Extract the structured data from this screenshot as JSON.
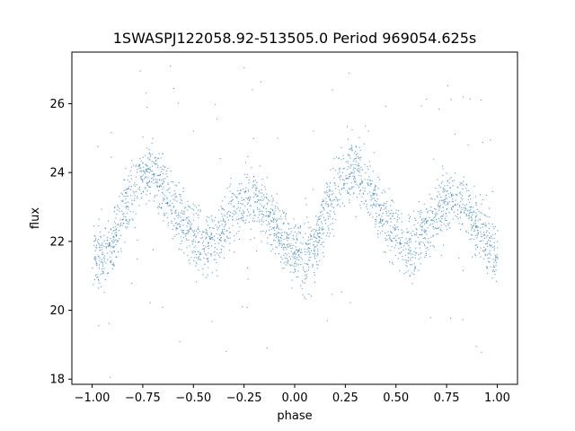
{
  "chart_data": {
    "type": "scatter",
    "title": "1SWASPJ122058.92-513505.0 Period 969054.625s",
    "xlabel": "phase",
    "ylabel": "flux",
    "xlim": [
      -1.1,
      1.1
    ],
    "ylim": [
      17.85,
      27.5
    ],
    "xticks": [
      -1.0,
      -0.75,
      -0.5,
      -0.25,
      0.0,
      0.25,
      0.5,
      0.75,
      1.0
    ],
    "xtick_labels": [
      "−1.00",
      "−0.75",
      "−0.50",
      "−0.25",
      "0.00",
      "0.25",
      "0.50",
      "0.75",
      "1.00"
    ],
    "yticks": [
      18,
      20,
      22,
      24,
      26
    ],
    "ytick_labels": [
      "18",
      "20",
      "22",
      "24",
      "26"
    ],
    "grid": false,
    "point_color": "#1f77b4",
    "series": [
      {
        "phase_range": [
          -1.0,
          1.0
        ],
        "trend_x": [
          0.0,
          0.05,
          0.1,
          0.15,
          0.2,
          0.25,
          0.3,
          0.35,
          0.4,
          0.45,
          0.5,
          0.55,
          0.6,
          0.65,
          0.7,
          0.75,
          0.8,
          0.85,
          0.9,
          0.95,
          1.0
        ],
        "trend_y": [
          21.7,
          21.4,
          22.0,
          22.8,
          23.5,
          23.9,
          24.1,
          23.6,
          23.0,
          22.6,
          22.2,
          21.9,
          22.0,
          22.4,
          22.9,
          23.2,
          23.3,
          23.0,
          22.5,
          22.0,
          21.6
        ],
        "scatter_width": 0.45
      }
    ]
  }
}
